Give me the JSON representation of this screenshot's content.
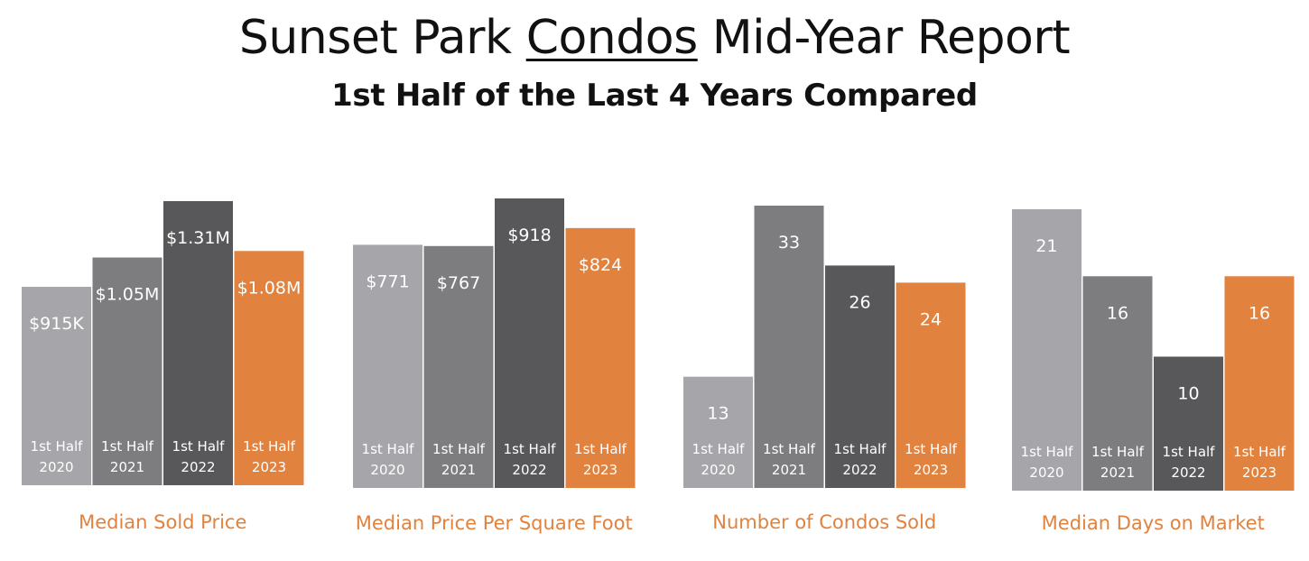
{
  "header": {
    "title_prefix": "Sunset Park ",
    "title_underlined": "Condos",
    "title_suffix": " Mid-Year Report",
    "subtitle": "1st Half of the Last 4 Years Compared"
  },
  "colors": {
    "bar_2020": "#a6a6aa",
    "bar_2021": "#7d7d80",
    "bar_2022": "#58585a",
    "bar_2023": "#e1823e",
    "caption": "#e1823e",
    "bar_text": "#ffffff"
  },
  "chart_data": [
    {
      "type": "bar",
      "title": "Median Sold Price",
      "categories": [
        "1st Half 2020",
        "1st Half 2021",
        "1st Half 2022",
        "1st Half 2023"
      ],
      "values": [
        915000,
        1050000,
        1310000,
        1080000
      ],
      "data_labels": [
        "$915K",
        "$1.05M",
        "$1.31M",
        "$1.08M"
      ]
    },
    {
      "type": "bar",
      "title": "Median Price Per Square Foot",
      "categories": [
        "1st Half 2020",
        "1st Half 2021",
        "1st Half 2022",
        "1st Half 2023"
      ],
      "values": [
        771,
        767,
        918,
        824
      ],
      "data_labels": [
        "$771",
        "$767",
        "$918",
        "$824"
      ]
    },
    {
      "type": "bar",
      "title": "Number of Condos Sold",
      "categories": [
        "1st Half 2020",
        "1st Half 2021",
        "1st Half 2022",
        "1st Half 2023"
      ],
      "values": [
        13,
        33,
        26,
        24
      ],
      "data_labels": [
        "13",
        "33",
        "26",
        "24"
      ]
    },
    {
      "type": "bar",
      "title": "Median Days on Market",
      "categories": [
        "1st Half 2020",
        "1st Half 2021",
        "1st Half 2022",
        "1st Half 2023"
      ],
      "values": [
        21,
        16,
        10,
        16
      ],
      "data_labels": [
        "21",
        "16",
        "10",
        "16"
      ]
    }
  ]
}
